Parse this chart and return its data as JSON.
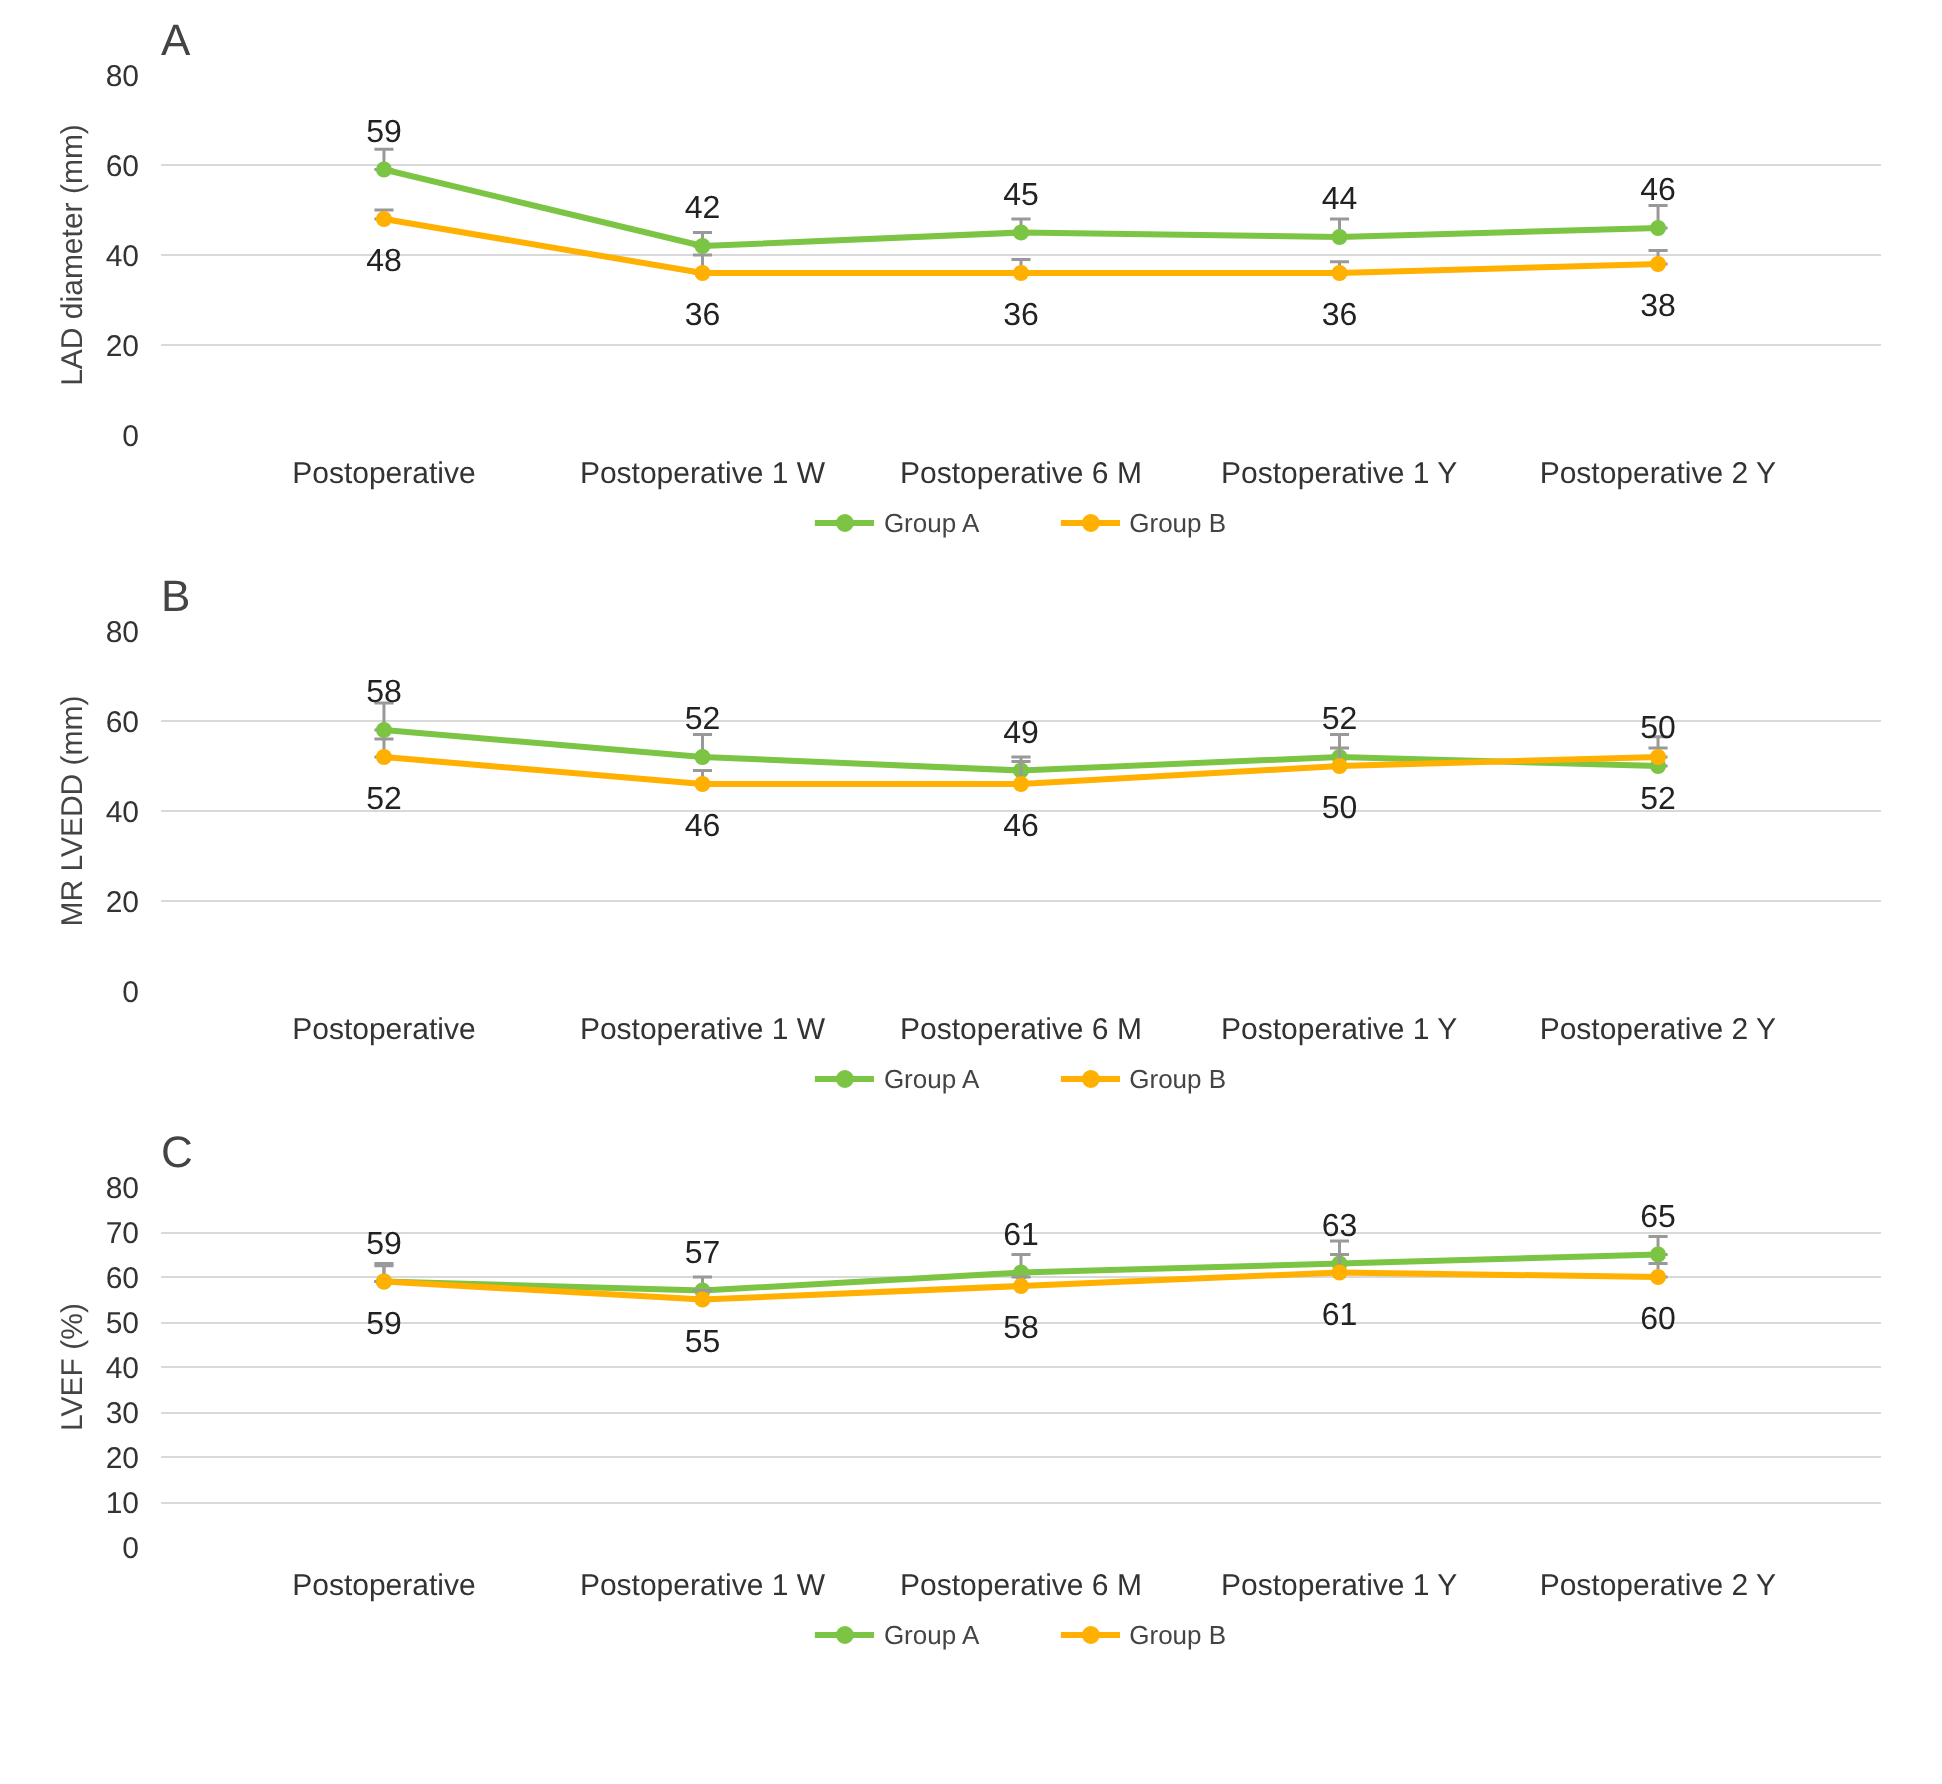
{
  "chart_data": [
    {
      "type": "line",
      "title": "A",
      "ylabel": "LAD diameter (mm)",
      "categories": [
        "Postoperative",
        "Postoperative 1 W",
        "Postoperative 6 M",
        "Postoperative 1 Y",
        "Postoperative 2 Y"
      ],
      "ylim": [
        0,
        80
      ],
      "yticks": [
        0,
        20,
        40,
        60,
        80
      ],
      "grid": "y",
      "legend": "bottom",
      "marker": "circle",
      "data_labels": true,
      "series": [
        {
          "name": "Group A",
          "color": "#7cc444",
          "values": [
            59,
            42,
            45,
            44,
            46
          ],
          "errors": [
            [
              59,
              63.5
            ],
            [
              42,
              45
            ],
            [
              45,
              48
            ],
            [
              44,
              48
            ],
            [
              46,
              51
            ]
          ]
        },
        {
          "name": "Group B",
          "color": "#ffb000",
          "values": [
            48,
            36,
            36,
            36,
            38
          ],
          "errors": [
            [
              48,
              50
            ],
            [
              36,
              40
            ],
            [
              36,
              39
            ],
            [
              36,
              38.5
            ],
            [
              38,
              41
            ]
          ]
        }
      ]
    },
    {
      "type": "line",
      "title": "B",
      "ylabel": "MR LVEDD (mm)",
      "categories": [
        "Postoperative",
        "Postoperative 1 W",
        "Postoperative 6 M",
        "Postoperative 1 Y",
        "Postoperative 2 Y"
      ],
      "ylim": [
        0,
        80
      ],
      "yticks": [
        0,
        20,
        40,
        60,
        80
      ],
      "grid": "y",
      "legend": "bottom",
      "marker": "circle",
      "data_labels": true,
      "series": [
        {
          "name": "Group A",
          "color": "#7cc444",
          "values": [
            58,
            52,
            49,
            52,
            50
          ],
          "errors": [
            [
              58,
              64
            ],
            [
              52,
              57
            ],
            [
              49,
              52
            ],
            [
              52,
              57
            ],
            [
              50,
              56.5
            ]
          ]
        },
        {
          "name": "Group B",
          "color": "#ffb000",
          "values": [
            52,
            46,
            46,
            50,
            52
          ],
          "errors": [
            [
              52,
              56
            ],
            [
              46,
              49
            ],
            [
              46,
              51
            ],
            [
              50,
              54
            ],
            [
              52,
              54
            ]
          ]
        }
      ]
    },
    {
      "type": "line",
      "title": "C",
      "ylabel": "LVEF (%)",
      "categories": [
        "Postoperative",
        "Postoperative 1 W",
        "Postoperative 6 M",
        "Postoperative 1 Y",
        "Postoperative 2 Y"
      ],
      "ylim": [
        0,
        80
      ],
      "yticks": [
        0,
        10,
        20,
        30,
        40,
        50,
        60,
        70,
        80
      ],
      "grid": "y",
      "legend": "bottom",
      "marker": "circle",
      "data_labels": true,
      "series": [
        {
          "name": "Group A",
          "color": "#7cc444",
          "values": [
            59,
            57,
            61,
            63,
            65
          ],
          "errors": [
            [
              59,
              63
            ],
            [
              57,
              60
            ],
            [
              61,
              65
            ],
            [
              63,
              68
            ],
            [
              65,
              69
            ]
          ]
        },
        {
          "name": "Group B",
          "color": "#ffb000",
          "values": [
            59,
            55,
            58,
            61,
            60
          ],
          "errors": [
            [
              59,
              62.5
            ],
            [
              55,
              57
            ],
            [
              58,
              60
            ],
            [
              61,
              65
            ],
            [
              60,
              63
            ]
          ]
        }
      ]
    }
  ]
}
